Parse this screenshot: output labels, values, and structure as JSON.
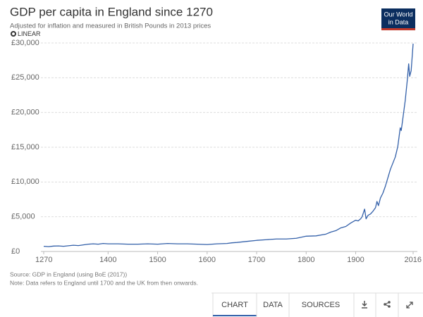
{
  "chart_data": {
    "type": "line",
    "title": "GDP per capita in England since 1270",
    "subtitle": "Adjusted for inflation and measured in British Pounds in 2013 prices",
    "scale_toggle": "LINEAR",
    "source": "Source: GDP in England (using BoE (2017))",
    "note": "Note: Data refers to England until 1700 and the UK from then onwards.",
    "x": [
      1270,
      1280,
      1290,
      1300,
      1310,
      1320,
      1330,
      1340,
      1350,
      1360,
      1370,
      1380,
      1390,
      1400,
      1420,
      1440,
      1460,
      1480,
      1500,
      1520,
      1540,
      1560,
      1580,
      1600,
      1620,
      1640,
      1650,
      1660,
      1680,
      1700,
      1720,
      1740,
      1760,
      1780,
      1800,
      1820,
      1840,
      1850,
      1860,
      1870,
      1880,
      1890,
      1900,
      1905,
      1910,
      1913,
      1918,
      1921,
      1925,
      1930,
      1935,
      1940,
      1943,
      1946,
      1950,
      1955,
      1960,
      1965,
      1970,
      1975,
      1980,
      1985,
      1990,
      1992,
      1995,
      2000,
      2004,
      2007,
      2009,
      2012,
      2016
    ],
    "series": [
      {
        "color": "#3360a9",
        "values": [
          750,
          700,
          780,
          800,
          750,
          820,
          900,
          850,
          950,
          1050,
          1100,
          1050,
          1150,
          1100,
          1100,
          1050,
          1050,
          1100,
          1050,
          1150,
          1100,
          1100,
          1050,
          1000,
          1100,
          1150,
          1250,
          1300,
          1450,
          1600,
          1700,
          1800,
          1800,
          1900,
          2200,
          2250,
          2500,
          2800,
          3000,
          3400,
          3600,
          4100,
          4500,
          4400,
          4700,
          5000,
          6100,
          4700,
          5200,
          5400,
          5800,
          6300,
          7200,
          6600,
          7700,
          8400,
          9400,
          10600,
          11800,
          12700,
          13600,
          15100,
          17800,
          17400,
          19000,
          21700,
          24500,
          27000,
          25200,
          26000,
          29900
        ]
      }
    ],
    "xlim": [
      1270,
      2016
    ],
    "ylim": [
      0,
      30000
    ],
    "xticks": [
      1270,
      1400,
      1500,
      1600,
      1700,
      1800,
      1900,
      2016
    ],
    "yticks": [
      {
        "value": 0,
        "label": "£0"
      },
      {
        "value": 5000,
        "label": "£5,000"
      },
      {
        "value": 10000,
        "label": "£10,000"
      },
      {
        "value": 15000,
        "label": "£15,000"
      },
      {
        "value": 20000,
        "label": "£20,000"
      },
      {
        "value": 25000,
        "label": "£25,000"
      },
      {
        "value": 30000,
        "label": "£30,000"
      }
    ],
    "grid": true
  },
  "logo": {
    "lines": [
      "Our World",
      "in Data"
    ]
  },
  "tabs": [
    "CHART",
    "DATA",
    "SOURCES"
  ]
}
